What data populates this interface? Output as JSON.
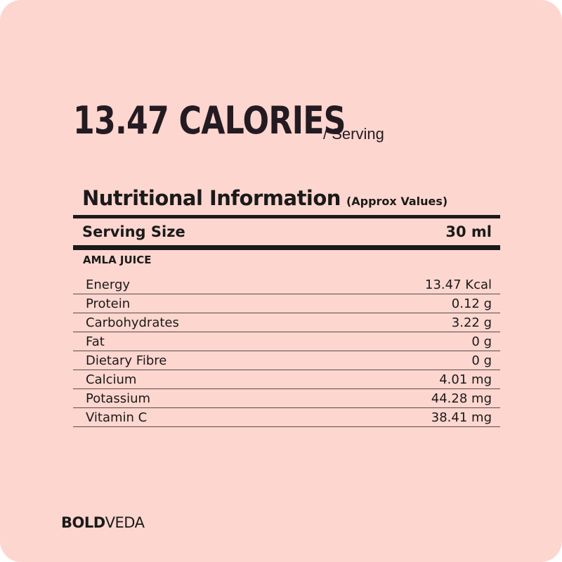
{
  "headline": {
    "calories": "13.47 CALORIES",
    "per_serving": "/ Serving"
  },
  "panel": {
    "title": "Nutritional Information",
    "approx": "(Approx Values)",
    "serving_size_label": "Serving Size",
    "serving_size_value": "30 ml",
    "section_label": "AMLA JUICE",
    "rows": [
      {
        "name": "Energy",
        "value": "13.47 Kcal"
      },
      {
        "name": "Protein",
        "value": "0.12 g"
      },
      {
        "name": "Carbohydrates",
        "value": "3.22 g"
      },
      {
        "name": "Fat",
        "value": "0 g"
      },
      {
        "name": "Dietary Fibre",
        "value": "0 g"
      },
      {
        "name": "Calcium",
        "value": "4.01 mg"
      },
      {
        "name": "Potassium",
        "value": "44.28 mg"
      },
      {
        "name": "Vitamin C",
        "value": "38.41 mg"
      }
    ]
  },
  "logo": {
    "bold_part": "BOLD",
    "light_part": "VEDA"
  },
  "colors": {
    "background": "#fdd6cf",
    "text": "#1a1a1a"
  }
}
